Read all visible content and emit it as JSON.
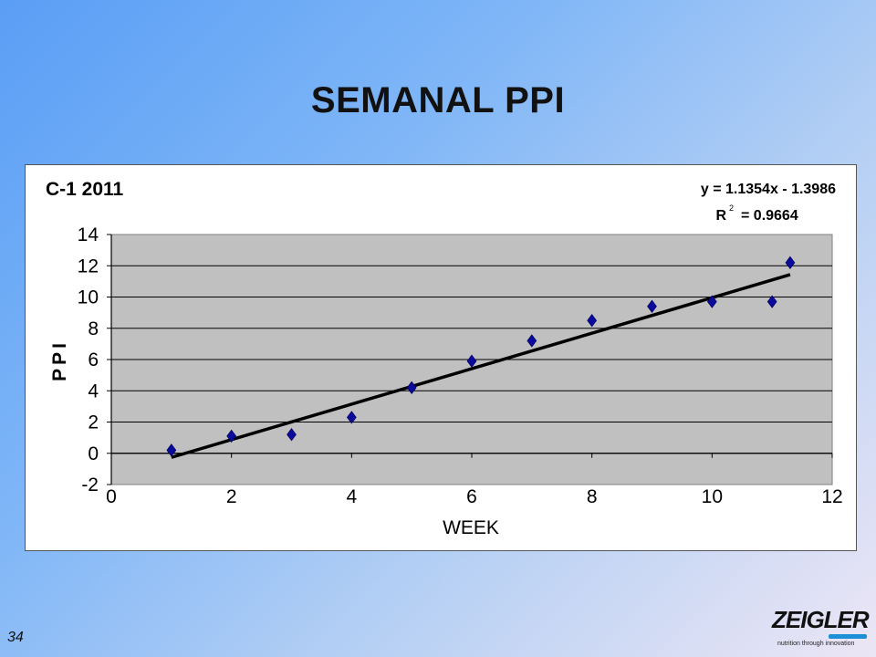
{
  "slide": {
    "title": "SEMANAL PPI",
    "page_number": "34",
    "logo_text": "ZEIGLER",
    "logo_tagline": "nutrition through innovation"
  },
  "chart_data": {
    "type": "scatter",
    "title": "C-1 2011",
    "xlabel": "WEEK",
    "ylabel": "PPI",
    "xlim": [
      0,
      12
    ],
    "ylim": [
      -2,
      14
    ],
    "x_ticks": [
      "0",
      "2",
      "4",
      "6",
      "8",
      "10",
      "12"
    ],
    "y_ticks": [
      "14",
      "12",
      "10",
      "8",
      "6",
      "4",
      "2",
      "0",
      "-2"
    ],
    "grid": "horizontal",
    "series": [
      {
        "marker": "diamond",
        "color": "#0a0a9c",
        "x": [
          1,
          2,
          3,
          4,
          5,
          6,
          7,
          8,
          9,
          10,
          11,
          11.3
        ],
        "y": [
          0.2,
          1.1,
          1.2,
          2.3,
          4.2,
          5.9,
          7.2,
          8.5,
          9.4,
          9.7,
          9.7,
          12.2
        ]
      }
    ],
    "trendline": {
      "type": "linear",
      "slope": 1.1354,
      "intercept": -1.3986,
      "x_range": [
        1,
        11.3
      ],
      "color": "#000000"
    },
    "equation": "y = 1.1354x - 1.3986",
    "r_squared_label": "R",
    "r_squared_exponent": "2",
    "r_squared_value": "= 0.9664",
    "plot_background": "#c0c0c0"
  }
}
